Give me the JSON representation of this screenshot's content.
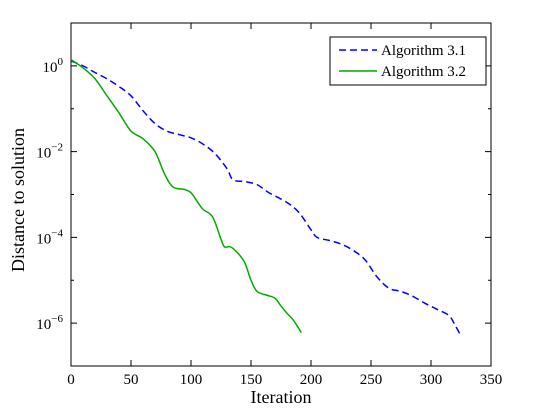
{
  "chart_data": {
    "type": "line",
    "title": "",
    "xlabel": "Iteration",
    "ylabel": "Distance to solution",
    "xlim": [
      0,
      350
    ],
    "ylim": [
      1e-07,
      10
    ],
    "yscale": "log",
    "grid": false,
    "legend_position": "top-right",
    "x_ticks": [
      0,
      50,
      100,
      150,
      200,
      250,
      300,
      350
    ],
    "y_ticks": [
      {
        "value": 1,
        "base": "10",
        "exp": "0"
      },
      {
        "value": 0.01,
        "base": "10",
        "exp": "−2"
      },
      {
        "value": 0.0001,
        "base": "10",
        "exp": "−4"
      },
      {
        "value": 1e-06,
        "base": "10",
        "exp": "−6"
      }
    ],
    "series": [
      {
        "name": "Algorithm 3.1",
        "color": "#0000ff",
        "style": "dashed",
        "points": [
          [
            0,
            1.3
          ],
          [
            10,
            1.0
          ],
          [
            20,
            0.7
          ],
          [
            30,
            0.5
          ],
          [
            40,
            0.33
          ],
          [
            50,
            0.2
          ],
          [
            60,
            0.09
          ],
          [
            70,
            0.045
          ],
          [
            80,
            0.03
          ],
          [
            90,
            0.025
          ],
          [
            100,
            0.021
          ],
          [
            110,
            0.015
          ],
          [
            120,
            0.009
          ],
          [
            130,
            0.004
          ],
          [
            135,
            0.0022
          ],
          [
            145,
            0.002
          ],
          [
            155,
            0.0017
          ],
          [
            165,
            0.0011
          ],
          [
            180,
            0.00065
          ],
          [
            190,
            0.00038
          ],
          [
            200,
            0.00015
          ],
          [
            205,
            0.0001
          ],
          [
            215,
            8.5e-05
          ],
          [
            225,
            7e-05
          ],
          [
            235,
            5e-05
          ],
          [
            245,
            3e-05
          ],
          [
            255,
            1.2e-05
          ],
          [
            265,
            6.5e-06
          ],
          [
            275,
            5.5e-06
          ],
          [
            285,
            4.2e-06
          ],
          [
            295,
            2.9e-06
          ],
          [
            305,
            2.1e-06
          ],
          [
            315,
            1.5e-06
          ],
          [
            320,
            9e-07
          ],
          [
            325,
            5e-07
          ]
        ]
      },
      {
        "name": "Algorithm 3.2",
        "color": "#00aa00",
        "style": "solid",
        "points": [
          [
            0,
            1.4
          ],
          [
            10,
            0.9
          ],
          [
            20,
            0.5
          ],
          [
            30,
            0.2
          ],
          [
            40,
            0.08
          ],
          [
            50,
            0.03
          ],
          [
            60,
            0.02
          ],
          [
            70,
            0.01
          ],
          [
            78,
            0.003
          ],
          [
            85,
            0.0015
          ],
          [
            95,
            0.0013
          ],
          [
            100,
            0.0011
          ],
          [
            105,
            0.0007
          ],
          [
            110,
            0.00045
          ],
          [
            118,
            0.0003
          ],
          [
            125,
            9e-05
          ],
          [
            128,
            6e-05
          ],
          [
            133,
            6e-05
          ],
          [
            140,
            4e-05
          ],
          [
            145,
            2.5e-05
          ],
          [
            150,
            1e-05
          ],
          [
            155,
            5.5e-06
          ],
          [
            163,
            4.5e-06
          ],
          [
            170,
            3.8e-06
          ],
          [
            175,
            2.5e-06
          ],
          [
            180,
            1.7e-06
          ],
          [
            185,
            1.2e-06
          ],
          [
            192,
            6e-07
          ]
        ]
      }
    ]
  }
}
